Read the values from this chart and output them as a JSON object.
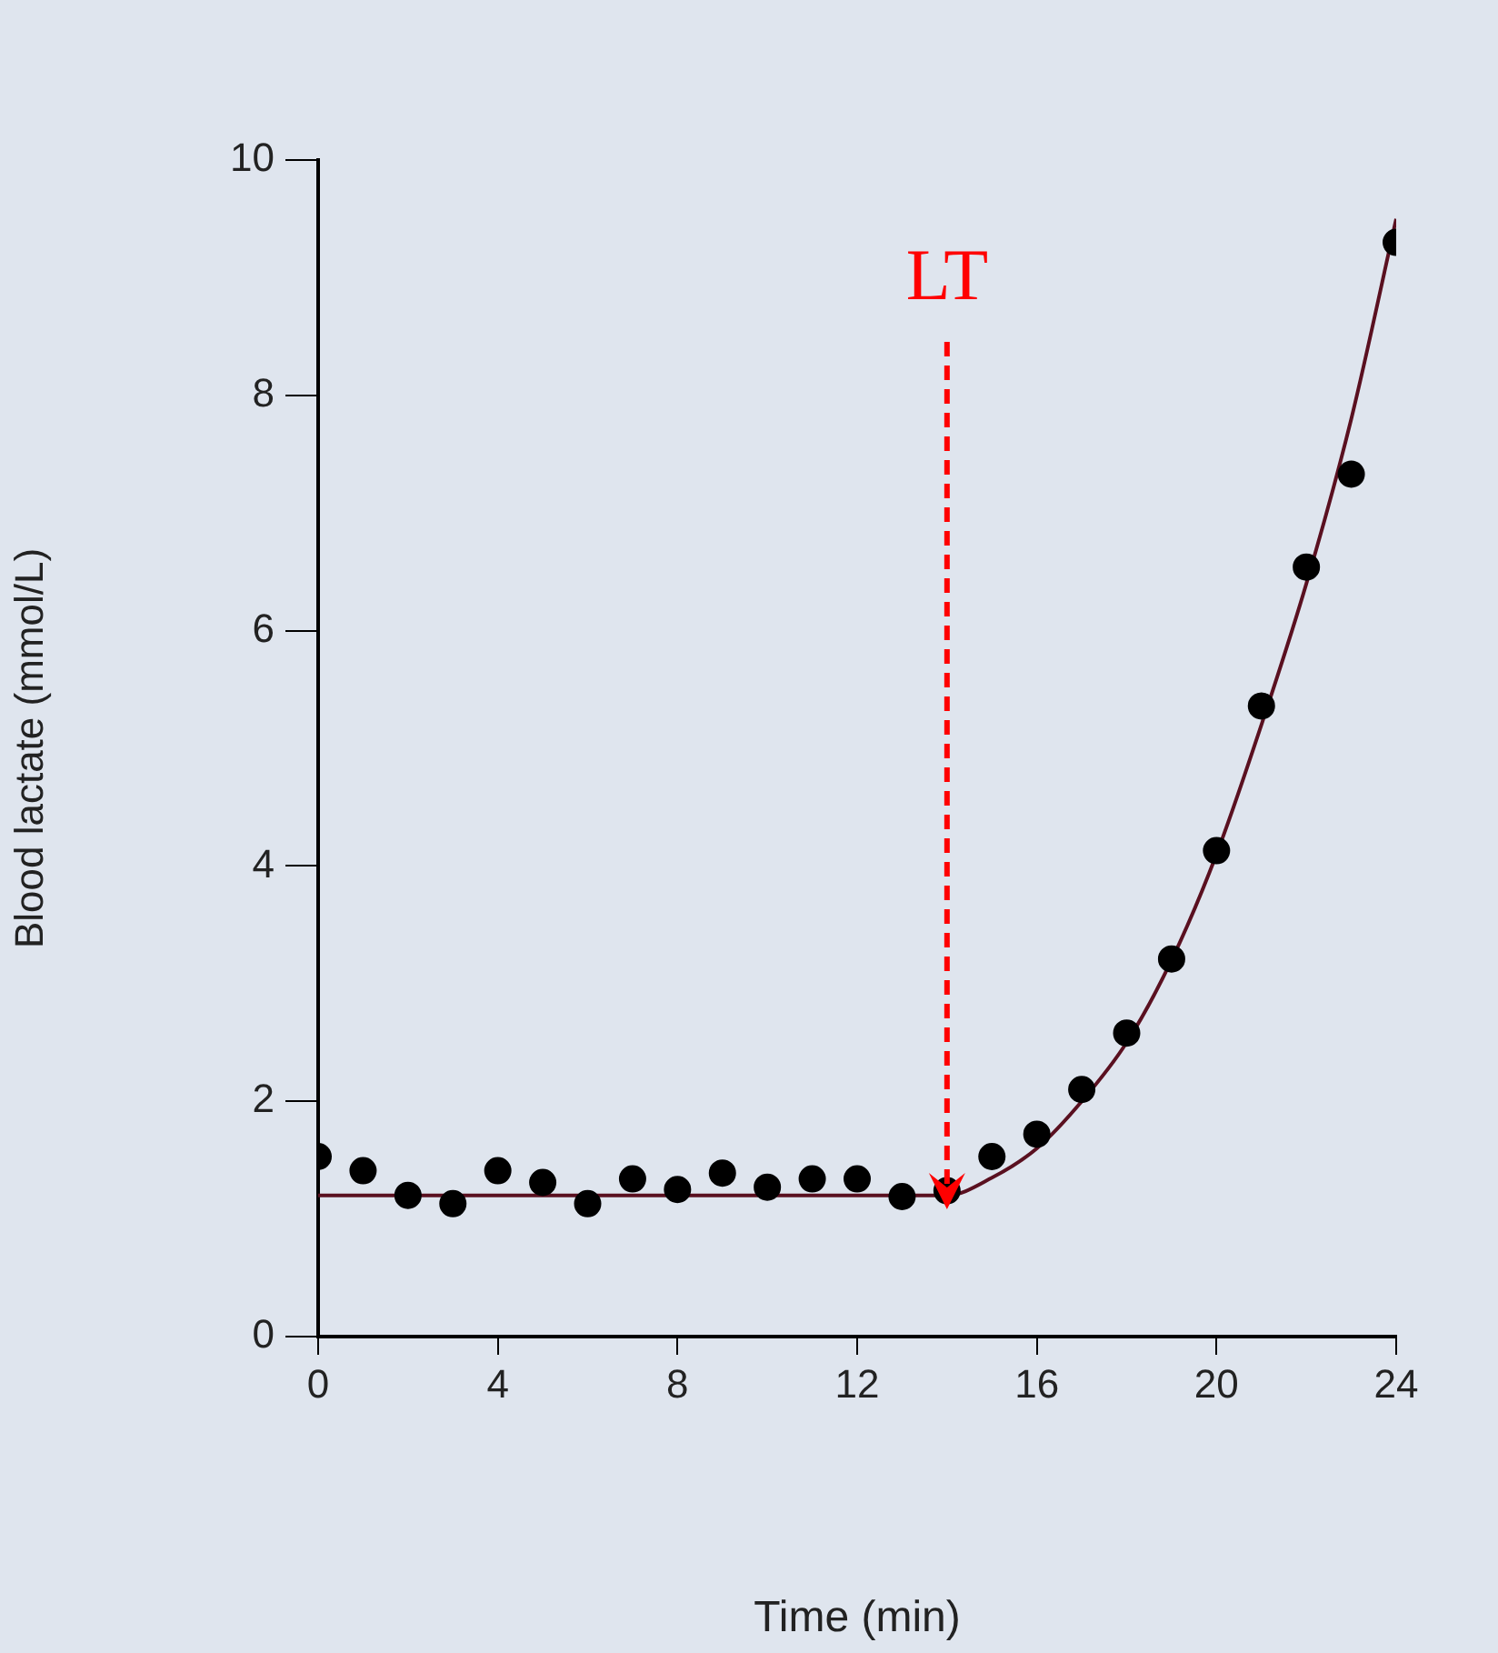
{
  "chart_data": {
    "type": "scatter",
    "xlabel": "Time (min)",
    "ylabel": "Blood lactate (mmol/L)",
    "xlim": [
      0,
      24
    ],
    "ylim": [
      0,
      10
    ],
    "xticks": [
      0,
      4,
      8,
      12,
      16,
      20,
      24
    ],
    "yticks": [
      0,
      2,
      4,
      6,
      8,
      10
    ],
    "grid": false,
    "legend": false,
    "marker": "circle",
    "ref_lines": [
      {
        "axis": "x",
        "value": 14,
        "label": "LT",
        "color": "#ff0000",
        "line_style": "dashed"
      }
    ],
    "series": [
      {
        "color": "#000000",
        "x": [
          0,
          1,
          2,
          3,
          4,
          5,
          6,
          7,
          8,
          9,
          10,
          11,
          12,
          13,
          14,
          15,
          16,
          17,
          18,
          19,
          20,
          21,
          22,
          23,
          24
        ],
        "values": [
          1.53,
          1.41,
          1.2,
          1.13,
          1.41,
          1.31,
          1.13,
          1.34,
          1.25,
          1.39,
          1.27,
          1.34,
          1.34,
          1.19,
          1.24,
          1.53,
          1.72,
          2.1,
          2.58,
          3.21,
          4.13,
          5.36,
          6.54,
          7.33,
          9.3
        ]
      },
      {
        "type": "line",
        "color": "#5a1020",
        "marker": "none",
        "x": [
          0,
          14,
          15,
          16,
          17,
          18,
          19,
          20,
          21,
          22,
          23,
          24
        ],
        "values": [
          1.2,
          1.2,
          1.35,
          1.6,
          2.0,
          2.5,
          3.2,
          4.1,
          5.2,
          6.4,
          7.8,
          9.5
        ]
      }
    ]
  }
}
